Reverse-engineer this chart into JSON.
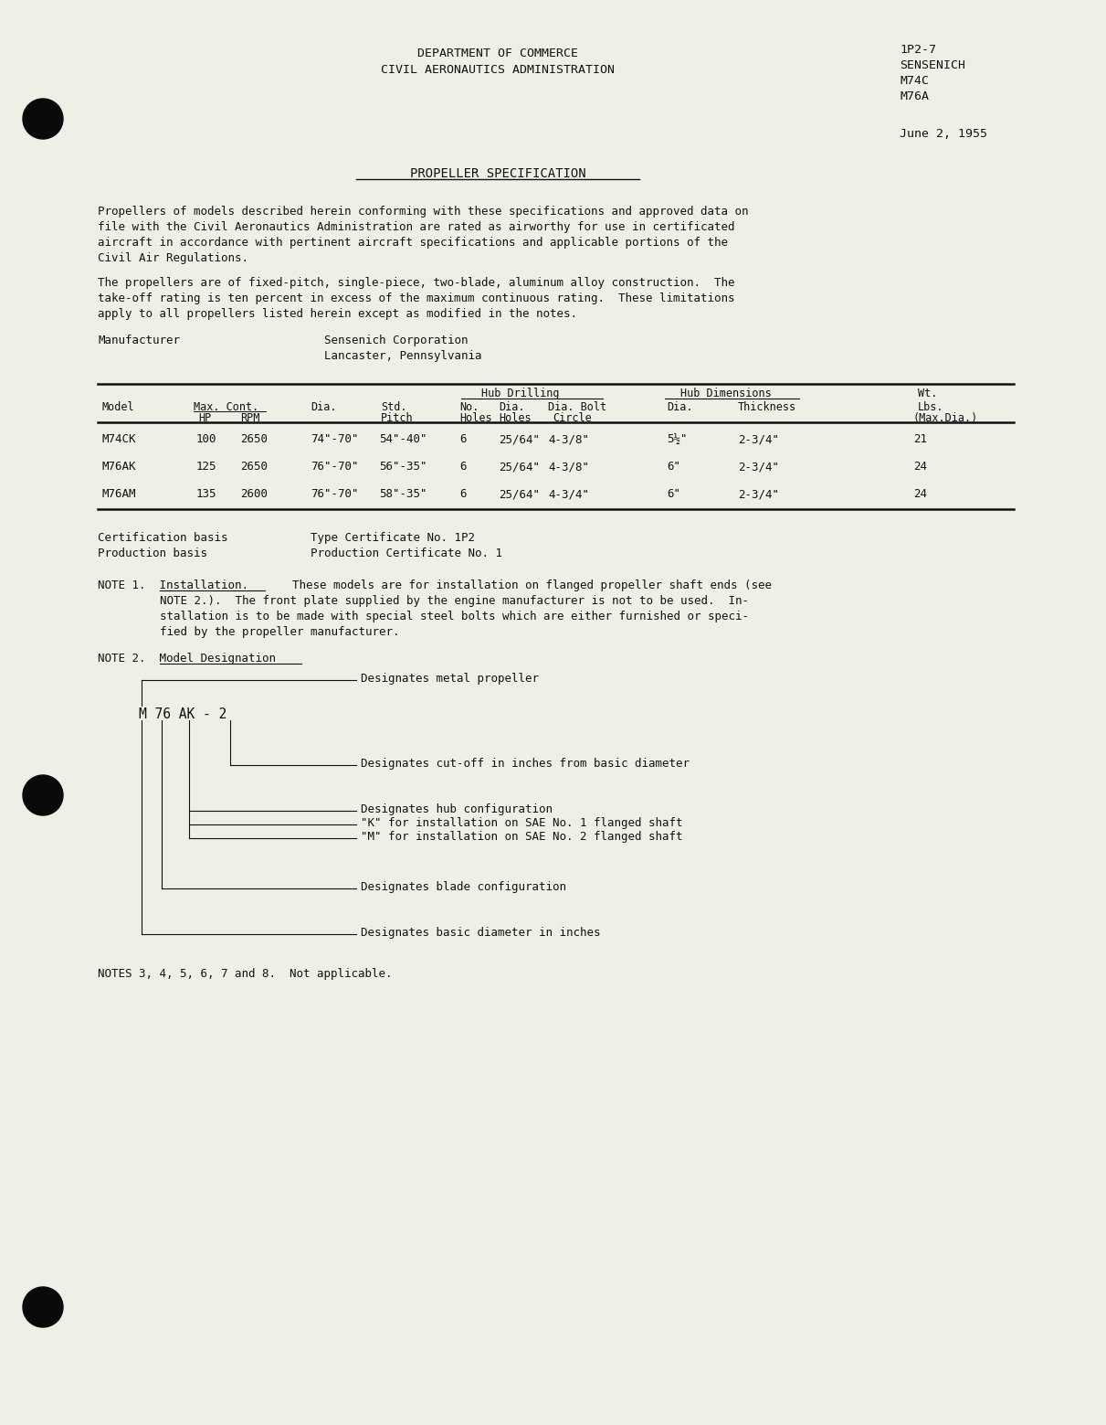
{
  "bg_color": "#f0efe6",
  "text_color": "#111111",
  "header_center_1": "DEPARTMENT OF COMMERCE",
  "header_center_2": "CIVIL AERONAUTICS ADMINISTRATION",
  "header_right_1": "1P2-7",
  "header_right_2": "SENSENICH",
  "header_right_3": "M74C",
  "header_right_4": "M76A",
  "date": "June 2, 1955",
  "title": "PROPELLER SPECIFICATION",
  "para1_lines": [
    "Propellers of models described herein conforming with these specifications and approved data on",
    "file with the Civil Aeronautics Administration are rated as airworthy for use in certificated",
    "aircraft in accordance with pertinent aircraft specifications and applicable portions of the",
    "Civil Air Regulations."
  ],
  "para2_lines": [
    "The propellers are of fixed-pitch, single-piece, two-blade, aluminum alloy construction.  The",
    "take-off rating is ten percent in excess of the maximum continuous rating.  These limitations",
    "apply to all propellers listed herein except as modified in the notes."
  ],
  "mfr_label": "Manufacturer",
  "mfr_val1": "Sensenich Corporation",
  "mfr_val2": "Lancaster, Pennsylvania",
  "cert1_label": "Certification basis",
  "cert1_val": "Type Certificate No. 1P2",
  "cert2_label": "Production basis",
  "cert2_val": "Production Certificate No. 1",
  "note1_head": "NOTE 1.  Installation.",
  "note1_inline": "These models are for installation on flanged propeller shaft ends (see",
  "note1_body": [
    "NOTE 2.).  The front plate supplied by the engine manufacturer is not to be used.  In-",
    "stallation is to be made with special steel bolts which are either furnished or speci-",
    "fied by the propeller manufacturer."
  ],
  "note2_head": "NOTE 2.  Model Designation",
  "model_ex": "M 76 AK - 2",
  "diag_labels": [
    "Designates metal propeller",
    "Designates cut-off in inches from basic diameter",
    "Designates hub configuration",
    "\"K\" for installation on SAE No. 1 flanged shaft",
    "\"M\" for installation on SAE No. 2 flanged shaft",
    "Designates blade configuration",
    "Designates basic diameter in inches"
  ],
  "footer_note": "NOTES 3, 4, 5, 6, 7 and 8.  Not applicable.",
  "rows": [
    [
      "M74CK",
      "100",
      "2650",
      "74\"-70\"",
      "54\"-40\"",
      "6",
      "25/64\"",
      "4-3/8\"",
      "5½\"",
      "2-3/4\"",
      "21"
    ],
    [
      "M76AK",
      "125",
      "2650",
      "76\"-70\"",
      "56\"-35\"",
      "6",
      "25/64\"",
      "4-3/8\"",
      "6\"",
      "2-3/4\"",
      "24"
    ],
    [
      "M76AM",
      "135",
      "2600",
      "76\"-70\"",
      "58\"-35\"",
      "6",
      "25/64\"",
      "4-3/4\"",
      "6\"",
      "2-3/4\"",
      "24"
    ]
  ]
}
